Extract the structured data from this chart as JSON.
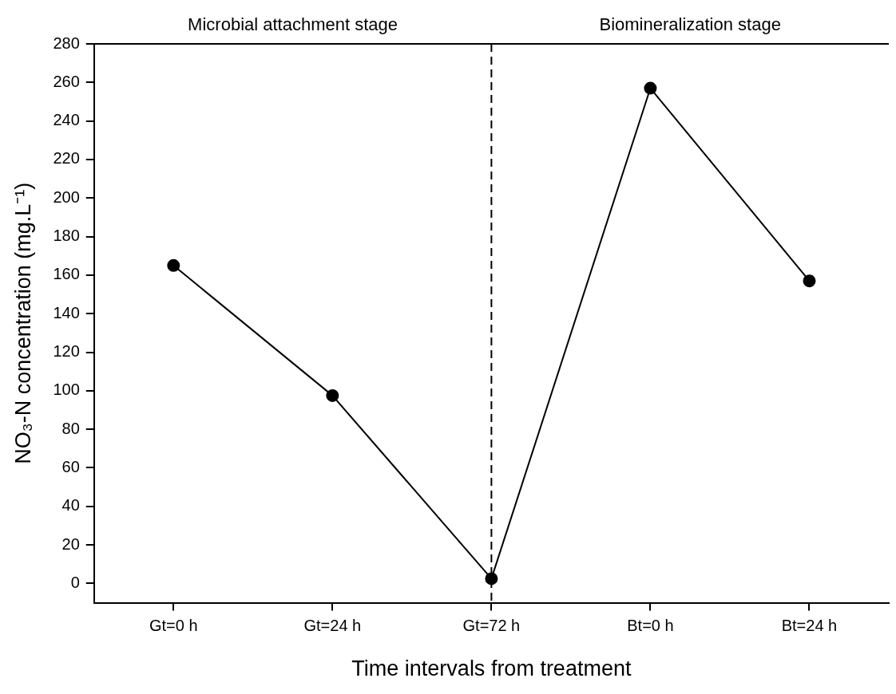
{
  "chart_data": {
    "type": "line",
    "xlabel": "Time intervals from treatment",
    "ylabel": "NO₃-N concentration (mg.L⁻¹)",
    "categories": [
      "Gt=0 h",
      "Gt=24 h",
      "Gt=72 h",
      "Bt=0 h",
      "Bt=24 h"
    ],
    "series": [
      {
        "color": "#000000",
        "values": [
          165,
          97.5,
          2.5,
          257,
          157
        ]
      }
    ],
    "ylim": [
      -10,
      280
    ],
    "yticks": [
      0,
      20,
      40,
      60,
      80,
      100,
      120,
      140,
      160,
      180,
      200,
      220,
      240,
      260,
      280
    ],
    "ref_lines": [
      {
        "axis": "x",
        "value": "Gt=72 h",
        "color": "#000000",
        "line_style": "dashed"
      }
    ],
    "annotations": [
      "Microbial attachment stage",
      "Biomineralization stage"
    ],
    "grid": false,
    "legend": false,
    "marker": "circle",
    "line_style": "solid"
  }
}
